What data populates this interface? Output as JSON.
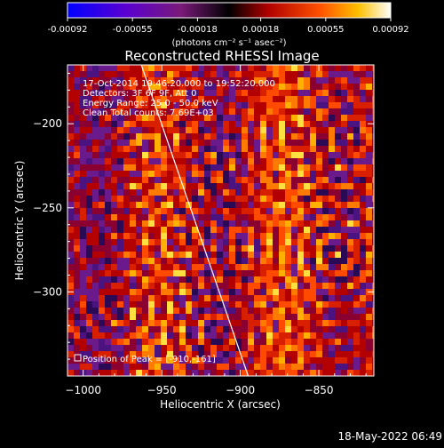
{
  "chart_data": {
    "type": "heatmap",
    "title": "Reconstructed RHESSI Image",
    "xlabel": "Heliocentric X (arcsec)",
    "ylabel": "Heliocentric Y (arcsec)",
    "xlim": [
      -1010,
      -815
    ],
    "ylim": [
      -350,
      -165
    ],
    "xticks": [
      -1000,
      -950,
      -900,
      -850
    ],
    "xtick_labels": [
      "−1000",
      "−950",
      "−900",
      "−850"
    ],
    "yticks": [
      -200,
      -250,
      -300
    ],
    "ytick_labels": [
      "−200",
      "−250",
      "−300"
    ],
    "colorbar": {
      "range": [
        -0.00092,
        0.00092
      ],
      "ticks": [
        -0.00092,
        -0.00055,
        -0.00018,
        0.00018,
        0.00055,
        0.00092
      ],
      "tick_labels": [
        "-0.00092",
        "-0.00055",
        "-0.00018",
        "0.00018",
        "0.00055",
        "0.00092"
      ],
      "unit_label": "(photons cm⁻² s⁻¹ asec⁻²)"
    },
    "annotations": [
      "17-Oct-2014 19:46:20.000 to 19:52:20.000",
      "Detectors: 3F 6F 9F, Att 0",
      "Energy Range: 25.0 - 50.0 keV",
      "Clean    Total counts: 7.69E+03"
    ],
    "peak_label": "Position of Peak = [-910,-161]",
    "limb_line": [
      [
        -963,
        -165
      ],
      [
        -895,
        -350
      ]
    ],
    "peak": [
      -910,
      -161
    ]
  },
  "footer": {
    "timestamp": "18-May-2022 06:49"
  }
}
